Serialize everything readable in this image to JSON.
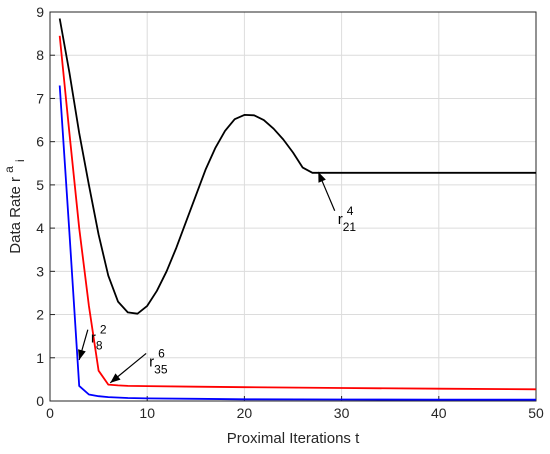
{
  "chart_data": {
    "type": "line",
    "xlabel": "Proximal Iterations t",
    "ylabel": {
      "base": "Data Rate r",
      "sup": "a",
      "sub": "i"
    },
    "xlim": [
      0,
      50
    ],
    "ylim": [
      0,
      9
    ],
    "xticks": [
      0,
      10,
      20,
      30,
      40,
      50
    ],
    "yticks": [
      0,
      1,
      2,
      3,
      4,
      5,
      6,
      7,
      8,
      9
    ],
    "grid": true,
    "series": [
      {
        "color": "#000000",
        "x": [
          1,
          2,
          3,
          4,
          5,
          6,
          7,
          8,
          9,
          10,
          11,
          12,
          13,
          14,
          15,
          16,
          17,
          18,
          19,
          20,
          21,
          22,
          23,
          24,
          25,
          26,
          27,
          28,
          30,
          35,
          40,
          45,
          50
        ],
        "y": [
          8.85,
          7.6,
          6.2,
          5.0,
          3.85,
          2.9,
          2.3,
          2.05,
          2.02,
          2.2,
          2.55,
          3.0,
          3.55,
          4.15,
          4.75,
          5.35,
          5.85,
          6.25,
          6.52,
          6.62,
          6.61,
          6.5,
          6.3,
          6.05,
          5.75,
          5.4,
          5.28,
          5.28,
          5.28,
          5.28,
          5.28,
          5.28,
          5.28
        ]
      },
      {
        "color": "#ff0000",
        "x": [
          1,
          2,
          3,
          4,
          5,
          6,
          7,
          8,
          10,
          15,
          20,
          30,
          40,
          50
        ],
        "y": [
          8.45,
          6.2,
          4.0,
          2.2,
          0.7,
          0.38,
          0.36,
          0.35,
          0.345,
          0.33,
          0.32,
          0.3,
          0.285,
          0.27
        ]
      },
      {
        "color": "#0000ff",
        "x": [
          1,
          2,
          3,
          4,
          5,
          6,
          8,
          10,
          15,
          20,
          30,
          40,
          50
        ],
        "y": [
          7.3,
          3.9,
          0.35,
          0.15,
          0.11,
          0.09,
          0.07,
          0.06,
          0.05,
          0.04,
          0.035,
          0.03,
          0.03
        ]
      }
    ],
    "annotations": [
      {
        "base": "r",
        "sub": "21",
        "sup": "4",
        "point": [
          27.6,
          5.3
        ],
        "label_at": [
          29.6,
          4.1
        ]
      },
      {
        "base": "r",
        "sub": "8",
        "sup": "2",
        "point": [
          3.0,
          0.95
        ],
        "label_at": [
          4.2,
          1.35
        ]
      },
      {
        "base": "r",
        "sub": "35",
        "sup": "6",
        "point": [
          6.2,
          0.42
        ],
        "label_at": [
          10.2,
          0.8
        ]
      }
    ]
  }
}
